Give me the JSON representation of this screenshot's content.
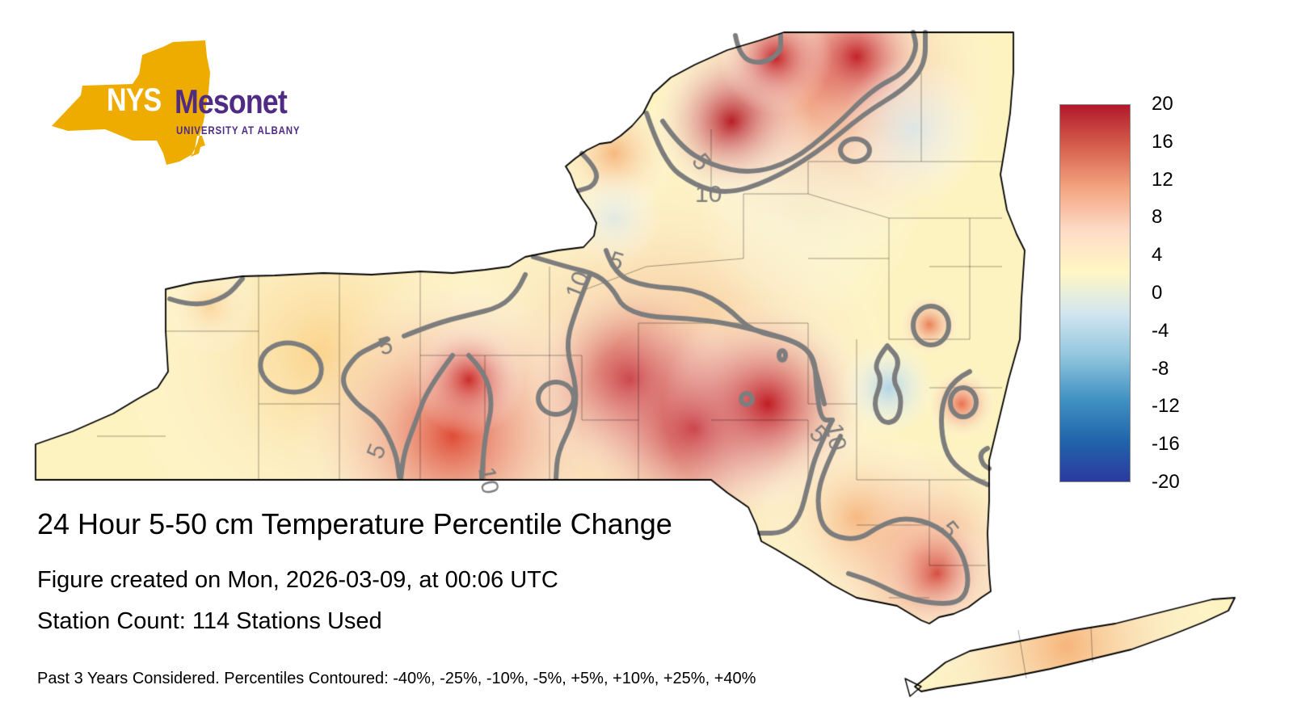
{
  "logo": {
    "nys": "NYS",
    "mesonet": "Mesonet",
    "subtitle": "UNIVERSITY AT ALBANY",
    "state_color": "#efac00",
    "text_color": "#4f2b84"
  },
  "title": "24 Hour 5-50 cm Temperature Percentile Change",
  "created": "Figure created on Mon, 2026-03-09, at 00:06 UTC",
  "stations": "Station Count: 114 Stations Used",
  "note": "Past 3 Years Considered. Percentiles Contoured: -40%, -25%, -10%, -5%, +5%, +10%, +25%, +40%",
  "colorbar": {
    "labels": [
      "20",
      "16",
      "12",
      "8",
      "4",
      "0",
      "-4",
      "-8",
      "-12",
      "-16",
      "-20"
    ],
    "colors": [
      "#b2182b",
      "#d6604d",
      "#f4a582",
      "#fddbc7",
      "#fff7c4",
      "#d1e5f0",
      "#92c5de",
      "#4393c3",
      "#2166ac",
      "#2b3a9e"
    ]
  },
  "contour_labels": [
    "5",
    "10",
    "5",
    "10",
    "5",
    "5",
    "10",
    "5",
    "10",
    "5"
  ]
}
